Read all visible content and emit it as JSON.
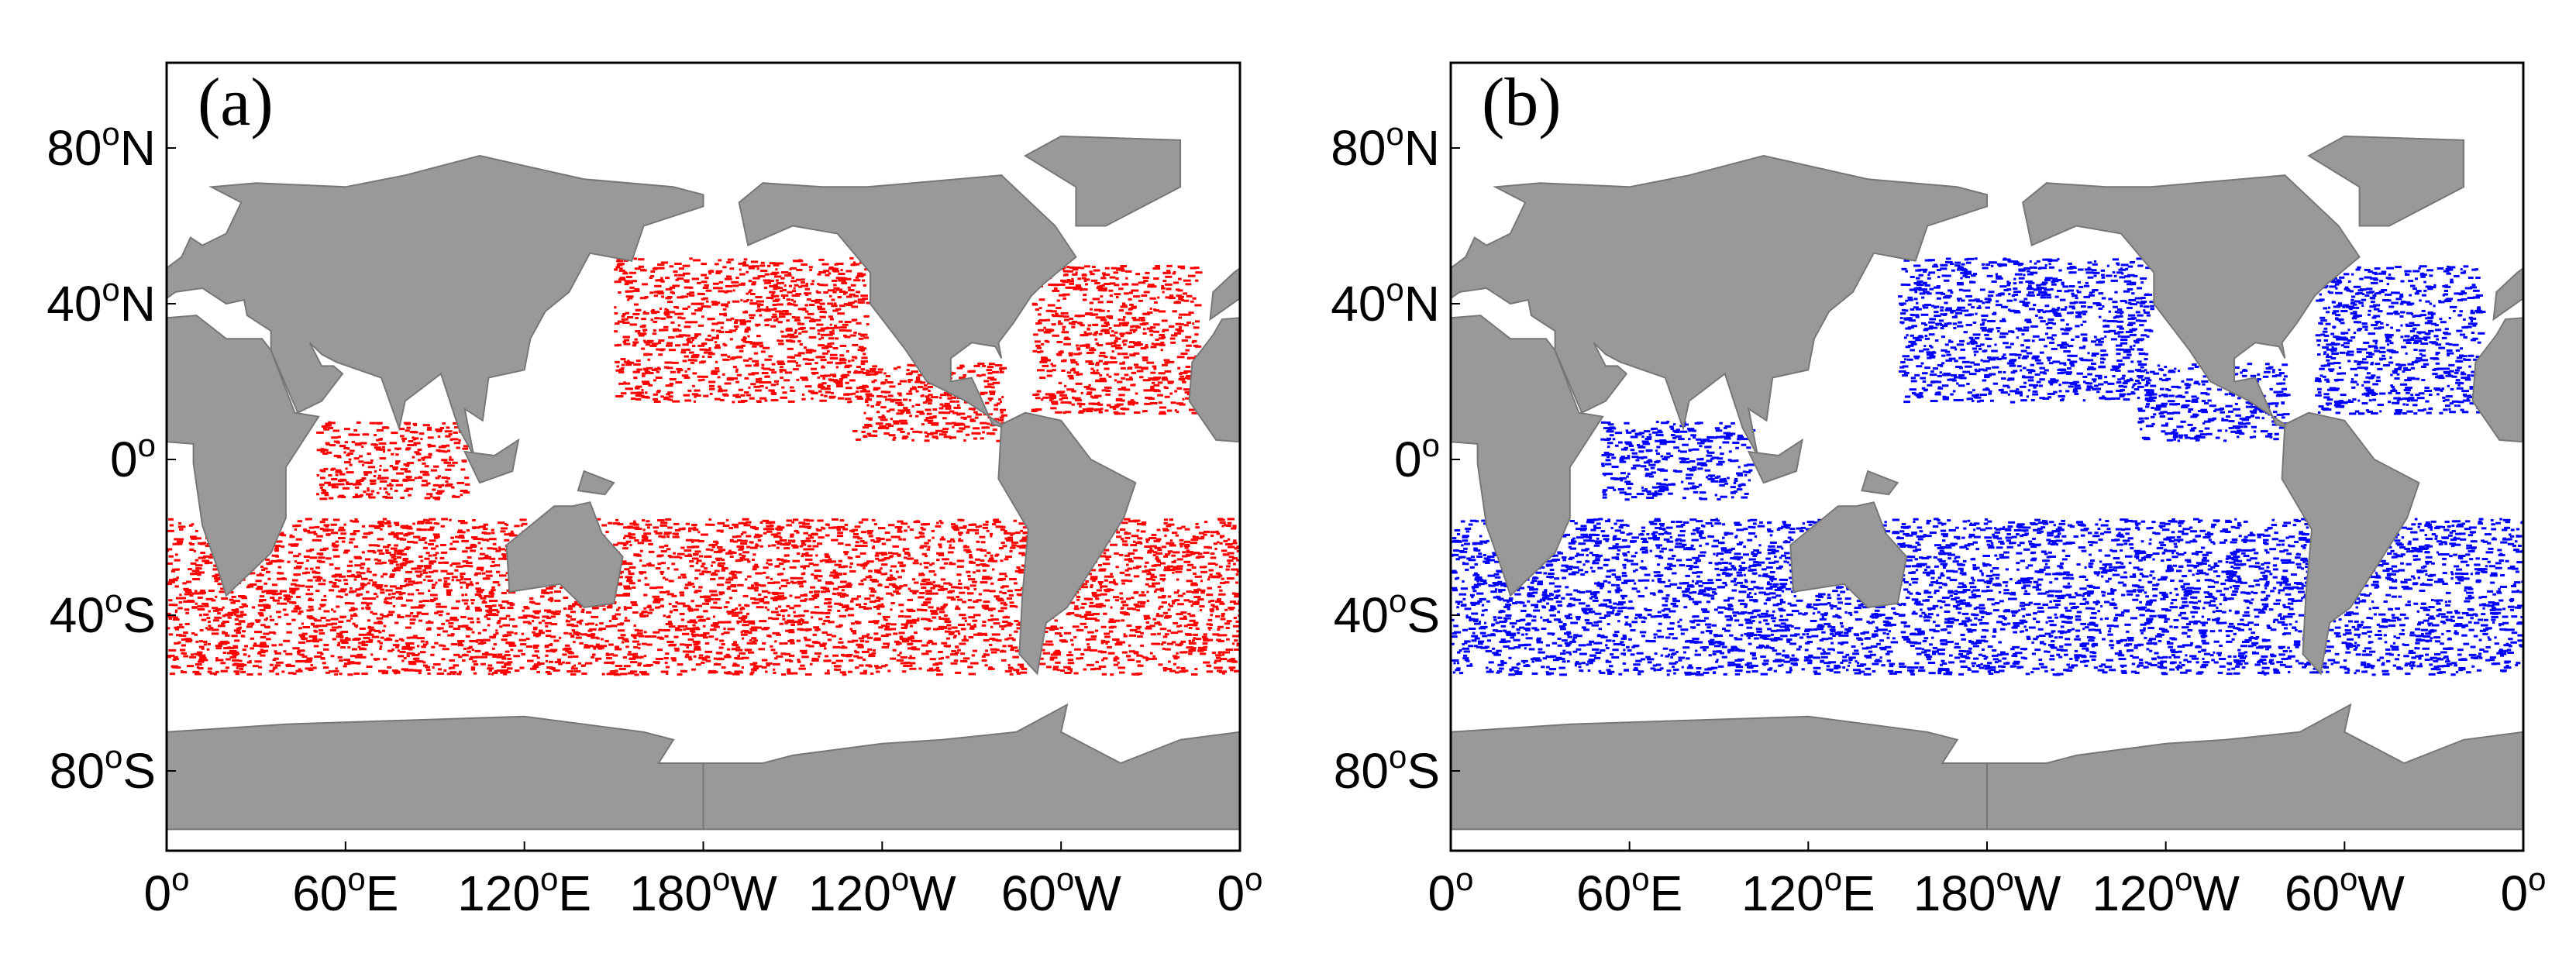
{
  "panels": [
    {
      "label": "(a)",
      "color": "#ff0000",
      "yticks": [
        {
          "num": "80",
          "sup": "o",
          "hem": "N"
        },
        {
          "num": "40",
          "sup": "o",
          "hem": "N"
        },
        {
          "num": "0",
          "sup": "o"
        },
        {
          "num": "40",
          "sup": "o",
          "hem": "S"
        },
        {
          "num": "80",
          "sup": "o",
          "hem": "S"
        }
      ],
      "xticks": [
        {
          "num": "0",
          "sup": "o"
        },
        {
          "num": "60",
          "sup": "o",
          "hem": "E"
        },
        {
          "num": "120",
          "sup": "o",
          "hem": "E"
        },
        {
          "num": "180",
          "sup": "o",
          "hem": "W"
        },
        {
          "num": "120",
          "sup": "o",
          "hem": "W"
        },
        {
          "num": "60",
          "sup": "o",
          "hem": "W"
        },
        {
          "num": "0",
          "sup": "o"
        }
      ]
    },
    {
      "label": "(b)",
      "color": "#0000ff",
      "yticks": [
        {
          "num": "80",
          "sup": "o",
          "hem": "N"
        },
        {
          "num": "40",
          "sup": "o",
          "hem": "N"
        },
        {
          "num": "0",
          "sup": "o"
        },
        {
          "num": "40",
          "sup": "o",
          "hem": "S"
        },
        {
          "num": "80",
          "sup": "o",
          "hem": "S"
        }
      ],
      "xticks": [
        {
          "num": "0",
          "sup": "o"
        },
        {
          "num": "60",
          "sup": "o",
          "hem": "E"
        },
        {
          "num": "120",
          "sup": "o",
          "hem": "E"
        },
        {
          "num": "180",
          "sup": "o",
          "hem": "W"
        },
        {
          "num": "120",
          "sup": "o",
          "hem": "W"
        },
        {
          "num": "60",
          "sup": "o",
          "hem": "W"
        },
        {
          "num": "0",
          "sup": "o"
        }
      ]
    }
  ]
}
